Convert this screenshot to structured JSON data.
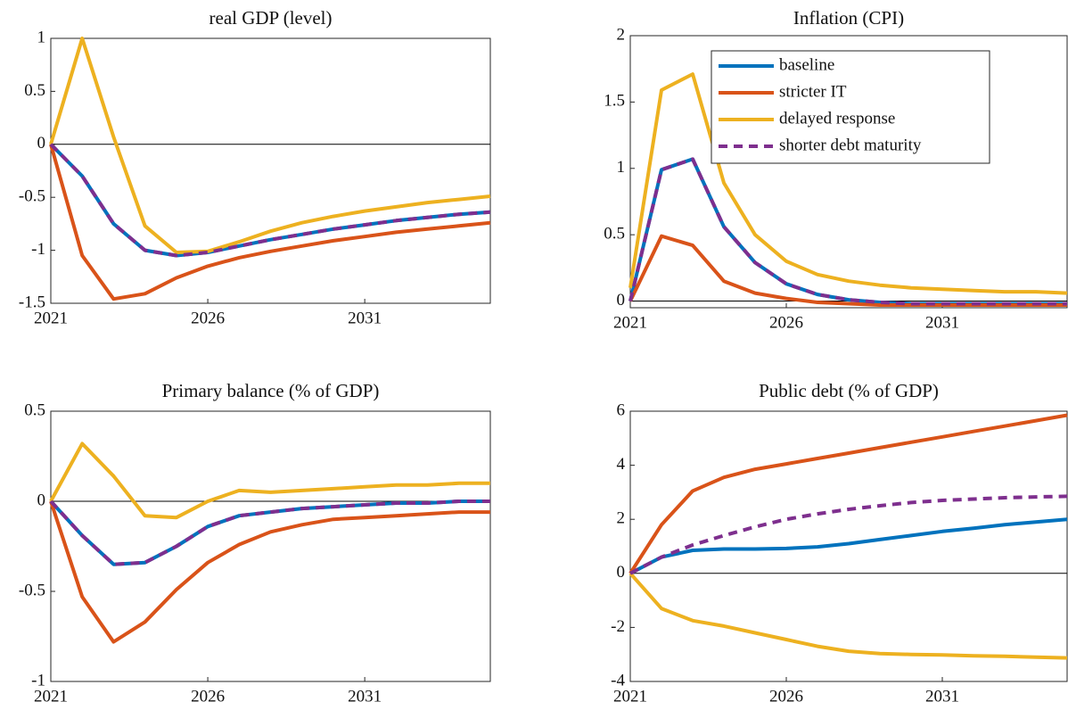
{
  "chart_data": [
    {
      "type": "line",
      "title": "real GDP (level)",
      "x": [
        2021,
        2022,
        2023,
        2024,
        2025,
        2026,
        2027,
        2028,
        2029,
        2030,
        2031,
        2032,
        2033,
        2034,
        2035
      ],
      "xlim": [
        2021,
        2035
      ],
      "xticks": [
        2021,
        2026,
        2031
      ],
      "ylim": [
        -1.5,
        1
      ],
      "yticks": [
        -1.5,
        -1,
        -0.5,
        0,
        0.5,
        1
      ],
      "series": [
        {
          "color": "#0072bd",
          "values": [
            0,
            -0.3,
            -0.75,
            -1.0,
            -1.05,
            -1.02,
            -0.96,
            -0.9,
            -0.85,
            -0.8,
            -0.76,
            -0.72,
            -0.69,
            -0.66,
            -0.64
          ]
        },
        {
          "color": "#d95319",
          "values": [
            0,
            -1.05,
            -1.46,
            -1.41,
            -1.26,
            -1.15,
            -1.07,
            -1.01,
            -0.96,
            -0.91,
            -0.87,
            -0.83,
            -0.8,
            -0.77,
            -0.74
          ]
        },
        {
          "color": "#edb120",
          "values": [
            0,
            1.0,
            0.07,
            -0.77,
            -1.02,
            -1.01,
            -0.92,
            -0.82,
            -0.74,
            -0.68,
            -0.63,
            -0.59,
            -0.55,
            -0.52,
            -0.49
          ]
        },
        {
          "color": "#7e2f8e",
          "style": "dashed",
          "values": [
            0,
            -0.3,
            -0.75,
            -1.0,
            -1.05,
            -1.02,
            -0.96,
            -0.9,
            -0.85,
            -0.8,
            -0.76,
            -0.72,
            -0.69,
            -0.66,
            -0.64
          ]
        }
      ]
    },
    {
      "type": "line",
      "title": "Inflation (CPI)",
      "x": [
        2021,
        2022,
        2023,
        2024,
        2025,
        2026,
        2027,
        2028,
        2029,
        2030,
        2031,
        2032,
        2033,
        2034,
        2035
      ],
      "xlim": [
        2021,
        2035
      ],
      "xticks": [
        2021,
        2026,
        2031
      ],
      "ylim": [
        -0.05,
        2
      ],
      "yticks": [
        0,
        0.5,
        1,
        1.5,
        2
      ],
      "legend": "north",
      "series": [
        {
          "name": "baseline",
          "color": "#0072bd",
          "values": [
            0,
            0.99,
            1.07,
            0.56,
            0.29,
            0.13,
            0.05,
            0.01,
            -0.01,
            -0.02,
            -0.02,
            -0.02,
            -0.02,
            -0.02,
            -0.02
          ]
        },
        {
          "name": "stricter IT",
          "color": "#d95319",
          "values": [
            0,
            0.49,
            0.42,
            0.15,
            0.06,
            0.02,
            -0.01,
            -0.02,
            -0.03,
            -0.03,
            -0.03,
            -0.03,
            -0.03,
            -0.03,
            -0.03
          ]
        },
        {
          "name": "delayed response",
          "color": "#edb120",
          "values": [
            0.1,
            1.59,
            1.71,
            0.89,
            0.5,
            0.3,
            0.2,
            0.15,
            0.12,
            0.1,
            0.09,
            0.08,
            0.07,
            0.07,
            0.06
          ]
        },
        {
          "name": "shorter debt maturity",
          "color": "#7e2f8e",
          "style": "dashed",
          "values": [
            0,
            0.99,
            1.07,
            0.56,
            0.29,
            0.13,
            0.05,
            0.01,
            -0.01,
            -0.02,
            -0.02,
            -0.02,
            -0.02,
            -0.02,
            -0.02
          ]
        }
      ]
    },
    {
      "type": "line",
      "title": "Primary balance (% of GDP)",
      "x": [
        2021,
        2022,
        2023,
        2024,
        2025,
        2026,
        2027,
        2028,
        2029,
        2030,
        2031,
        2032,
        2033,
        2034,
        2035
      ],
      "xlim": [
        2021,
        2035
      ],
      "xticks": [
        2021,
        2026,
        2031
      ],
      "ylim": [
        -1,
        0.5
      ],
      "yticks": [
        -1,
        -0.5,
        0,
        0.5
      ],
      "series": [
        {
          "color": "#0072bd",
          "values": [
            0,
            -0.19,
            -0.35,
            -0.34,
            -0.25,
            -0.14,
            -0.08,
            -0.06,
            -0.04,
            -0.03,
            -0.02,
            -0.01,
            -0.01,
            0,
            0
          ]
        },
        {
          "color": "#d95319",
          "values": [
            0,
            -0.53,
            -0.78,
            -0.67,
            -0.49,
            -0.34,
            -0.24,
            -0.17,
            -0.13,
            -0.1,
            -0.09,
            -0.08,
            -0.07,
            -0.06,
            -0.06
          ]
        },
        {
          "color": "#edb120",
          "values": [
            0,
            0.32,
            0.14,
            -0.08,
            -0.09,
            0,
            0.06,
            0.05,
            0.06,
            0.07,
            0.08,
            0.09,
            0.09,
            0.1,
            0.1
          ]
        },
        {
          "color": "#7e2f8e",
          "style": "dashed",
          "values": [
            0,
            -0.19,
            -0.35,
            -0.34,
            -0.25,
            -0.14,
            -0.08,
            -0.06,
            -0.04,
            -0.03,
            -0.02,
            -0.01,
            -0.01,
            0,
            0
          ]
        }
      ]
    },
    {
      "type": "line",
      "title": "Public debt (% of GDP)",
      "x": [
        2021,
        2022,
        2023,
        2024,
        2025,
        2026,
        2027,
        2028,
        2029,
        2030,
        2031,
        2032,
        2033,
        2034,
        2035
      ],
      "xlim": [
        2021,
        2035
      ],
      "xticks": [
        2021,
        2026,
        2031
      ],
      "ylim": [
        -4,
        6
      ],
      "yticks": [
        -4,
        -2,
        0,
        2,
        4,
        6
      ],
      "series": [
        {
          "color": "#0072bd",
          "values": [
            0,
            0.6,
            0.85,
            0.9,
            0.9,
            0.92,
            0.98,
            1.1,
            1.25,
            1.4,
            1.55,
            1.67,
            1.8,
            1.9,
            2.0
          ]
        },
        {
          "color": "#d95319",
          "values": [
            0,
            1.8,
            3.05,
            3.55,
            3.85,
            4.05,
            4.25,
            4.45,
            4.65,
            4.85,
            5.05,
            5.25,
            5.45,
            5.65,
            5.85
          ]
        },
        {
          "color": "#edb120",
          "values": [
            0,
            -1.3,
            -1.75,
            -1.95,
            -2.2,
            -2.45,
            -2.7,
            -2.88,
            -2.97,
            -3.0,
            -3.02,
            -3.05,
            -3.07,
            -3.1,
            -3.13
          ]
        },
        {
          "color": "#7e2f8e",
          "style": "dashed",
          "values": [
            0,
            0.6,
            1.05,
            1.4,
            1.72,
            2.0,
            2.2,
            2.37,
            2.5,
            2.62,
            2.7,
            2.75,
            2.8,
            2.83,
            2.85
          ]
        }
      ]
    }
  ]
}
